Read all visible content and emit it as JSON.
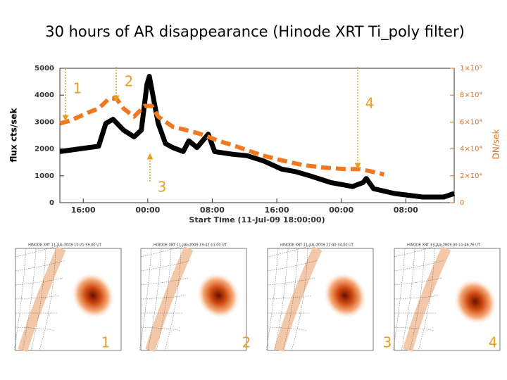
{
  "chart_data": {
    "type": "line",
    "title": "30 hours of AR disappearance (Hinode XRT Ti_poly filter)",
    "xlabel": "Start Time (11-Jul-09 18:00:00)",
    "ylabel": "flux cts/sek",
    "y2label": "DN/sek",
    "xlim": [
      13.1,
      62.0
    ],
    "xticks": [
      {
        "value": 16,
        "label": "16:00"
      },
      {
        "value": 24,
        "label": "00:00"
      },
      {
        "value": 32,
        "label": "08:00"
      },
      {
        "value": 40,
        "label": "16:00"
      },
      {
        "value": 48,
        "label": "00:00"
      },
      {
        "value": 56,
        "label": "08:00"
      }
    ],
    "ylim": [
      0,
      5000
    ],
    "yticks": [
      0,
      1000,
      2000,
      3000,
      4000,
      5000
    ],
    "y2lim": [
      0,
      100000
    ],
    "y2ticks": [
      0,
      {
        "value": 20000,
        "label": "2×10⁴"
      },
      {
        "value": 40000,
        "label": "4×10⁴"
      },
      {
        "value": 60000,
        "label": "6×10⁴"
      },
      {
        "value": 80000,
        "label": "8×10⁴"
      },
      {
        "value": 100000,
        "label": "1×10⁵"
      }
    ],
    "series": [
      {
        "color": "#000000",
        "x": [
          13.1,
          17.9,
          18.8,
          19.7,
          21.0,
          22.3,
          23.2,
          23.9,
          24.2,
          24.7,
          25.3,
          26.2,
          27.1,
          28.4,
          29.1,
          30.1,
          31.5,
          32.3,
          34.5,
          36.3,
          38.4,
          40.6,
          42.4,
          44.1,
          46.7,
          49.4,
          50.7,
          51.1,
          52.0,
          54.6,
          58.1,
          60.7,
          62.0
        ],
        "values": [
          1900,
          2100,
          2950,
          3100,
          2700,
          2450,
          2700,
          4400,
          4700,
          3900,
          2950,
          2200,
          2050,
          1900,
          2300,
          2050,
          2550,
          1900,
          1800,
          1750,
          1550,
          1250,
          1150,
          1000,
          750,
          600,
          750,
          900,
          520,
          340,
          210,
          210,
          340
        ]
      },
      {
        "color": "#f07820",
        "axis": "y2",
        "x": [
          13.1,
          14.4,
          16.6,
          17.9,
          19.2,
          20.1,
          21.0,
          22.3,
          23.6,
          24.5,
          25.3,
          27.1,
          28.8,
          30.6,
          32.8,
          35.4,
          38.0,
          40.6,
          43.2,
          45.9,
          48.5,
          50.2,
          51.5,
          53.3
        ],
        "values": [
          59000,
          61000,
          67000,
          70000,
          77500,
          77500,
          70000,
          64000,
          72000,
          72000,
          64000,
          56500,
          54000,
          51000,
          46000,
          41000,
          35500,
          31500,
          28000,
          26000,
          25000,
          25000,
          23500,
          21000
        ]
      }
    ],
    "annotations": [
      "1",
      "2",
      "3",
      "4"
    ]
  },
  "panels": [
    {
      "header": "HINODE XRT 11-JUL-2009 10:21:59.00 UT",
      "label": "1"
    },
    {
      "header": "HINODE XRT 11-JUL-2009 19:42:11.00 UT",
      "label": "2"
    },
    {
      "header": "HINODE XRT 11-JUL-2009 22:40:34.00 UT",
      "label": "3"
    },
    {
      "header": "HINODE XRT 13-JUL-2009 00:11:46.76 UT",
      "label": "4"
    }
  ]
}
